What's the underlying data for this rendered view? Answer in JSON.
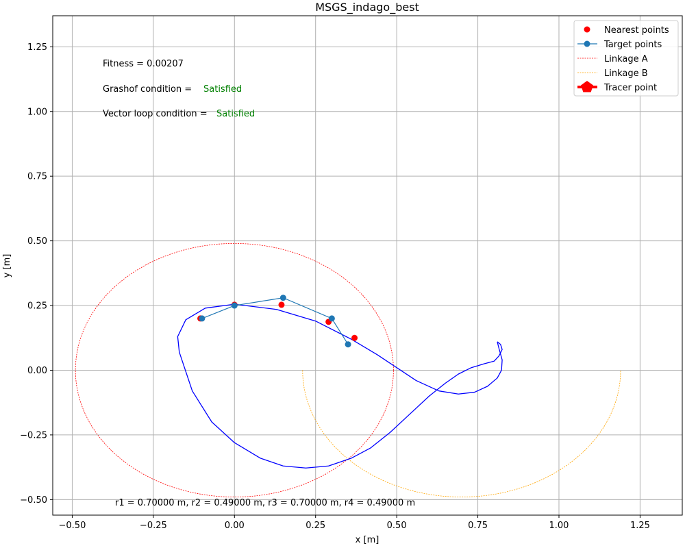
{
  "chart_data": {
    "type": "line",
    "title": "MSGS_indago_best",
    "xlabel": "x [m]",
    "ylabel": "y [m]",
    "xlim": [
      -0.56,
      1.38
    ],
    "ylim": [
      -0.56,
      1.37
    ],
    "grid": true,
    "legend_position": "top-right",
    "x_ticks": [
      {
        "value": -0.5,
        "label": "−0.50"
      },
      {
        "value": -0.25,
        "label": "−0.25"
      },
      {
        "value": 0.0,
        "label": "0.00"
      },
      {
        "value": 0.25,
        "label": "0.25"
      },
      {
        "value": 0.5,
        "label": "0.50"
      },
      {
        "value": 0.75,
        "label": "0.75"
      },
      {
        "value": 1.0,
        "label": "1.00"
      },
      {
        "value": 1.25,
        "label": "1.25"
      }
    ],
    "y_ticks": [
      {
        "value": -0.5,
        "label": "−0.50"
      },
      {
        "value": -0.25,
        "label": "−0.25"
      },
      {
        "value": 0.0,
        "label": "0.00"
      },
      {
        "value": 0.25,
        "label": "0.25"
      },
      {
        "value": 0.5,
        "label": "0.50"
      },
      {
        "value": 0.75,
        "label": "0.75"
      },
      {
        "value": 1.0,
        "label": "1.00"
      },
      {
        "value": 1.25,
        "label": "1.25"
      }
    ],
    "legend": [
      {
        "label": "Nearest points",
        "style": "red-dot"
      },
      {
        "label": "Target points",
        "style": "blue-line-dot"
      },
      {
        "label": "Linkage A",
        "style": "red-dashed"
      },
      {
        "label": "Linkage B",
        "style": "orange-dashed"
      },
      {
        "label": "Tracer point",
        "style": "red-pentagon-thick"
      }
    ],
    "annotations": {
      "fitness": "Fitness = 0.00207",
      "grashof_label": "Grashof condition = ",
      "grashof_value": "Satisfied",
      "vector_loop_label": "Vector loop condition = ",
      "vector_loop_value": "Satisfied",
      "lengths": "r1 = 0.70000 m, r2 = 0.49000 m, r3 = 0.70000 m, r4 = 0.49000 m"
    },
    "series": [
      {
        "name": "Nearest points",
        "color": "#ff0000",
        "x": [
          -0.105,
          0.0,
          0.145,
          0.29,
          0.37
        ],
        "y": [
          0.2,
          0.253,
          0.253,
          0.187,
          0.125
        ]
      },
      {
        "name": "Target points",
        "color": "#1f77b4",
        "x": [
          -0.1,
          0.0,
          0.15,
          0.3,
          0.35
        ],
        "y": [
          0.2,
          0.25,
          0.28,
          0.2,
          0.1
        ]
      },
      {
        "name": "Linkage A",
        "color": "#ff0000",
        "center": [
          0.0,
          0.0
        ],
        "radius": 0.49,
        "theta_range_deg": [
          0,
          360
        ]
      },
      {
        "name": "Linkage B",
        "color": "#ffa500",
        "center": [
          0.7,
          0.0
        ],
        "radius": 0.49,
        "theta_range_deg": [
          180,
          360
        ]
      },
      {
        "name": "Tracer point",
        "color": "#0000ff",
        "x": [
          0.81,
          0.815,
          0.825,
          0.823,
          0.81,
          0.78,
          0.74,
          0.69,
          0.63,
          0.56,
          0.5,
          0.44,
          0.36,
          0.25,
          0.13,
          0.0,
          -0.09,
          -0.15,
          -0.175,
          -0.17,
          -0.13,
          -0.07,
          0.0,
          0.08,
          0.15,
          0.22,
          0.29,
          0.36,
          0.42,
          0.48,
          0.54,
          0.6,
          0.65,
          0.69,
          0.73,
          0.77,
          0.8,
          0.815,
          0.825,
          0.82,
          0.81
        ],
        "y": [
          0.11,
          0.085,
          0.04,
          0.0,
          -0.03,
          -0.062,
          -0.085,
          -0.092,
          -0.08,
          -0.04,
          0.01,
          0.06,
          0.12,
          0.19,
          0.235,
          0.255,
          0.24,
          0.195,
          0.13,
          0.07,
          -0.08,
          -0.2,
          -0.28,
          -0.34,
          -0.37,
          -0.378,
          -0.37,
          -0.34,
          -0.3,
          -0.24,
          -0.17,
          -0.1,
          -0.05,
          -0.015,
          0.01,
          0.025,
          0.035,
          0.055,
          0.08,
          0.1,
          0.11
        ]
      }
    ]
  }
}
